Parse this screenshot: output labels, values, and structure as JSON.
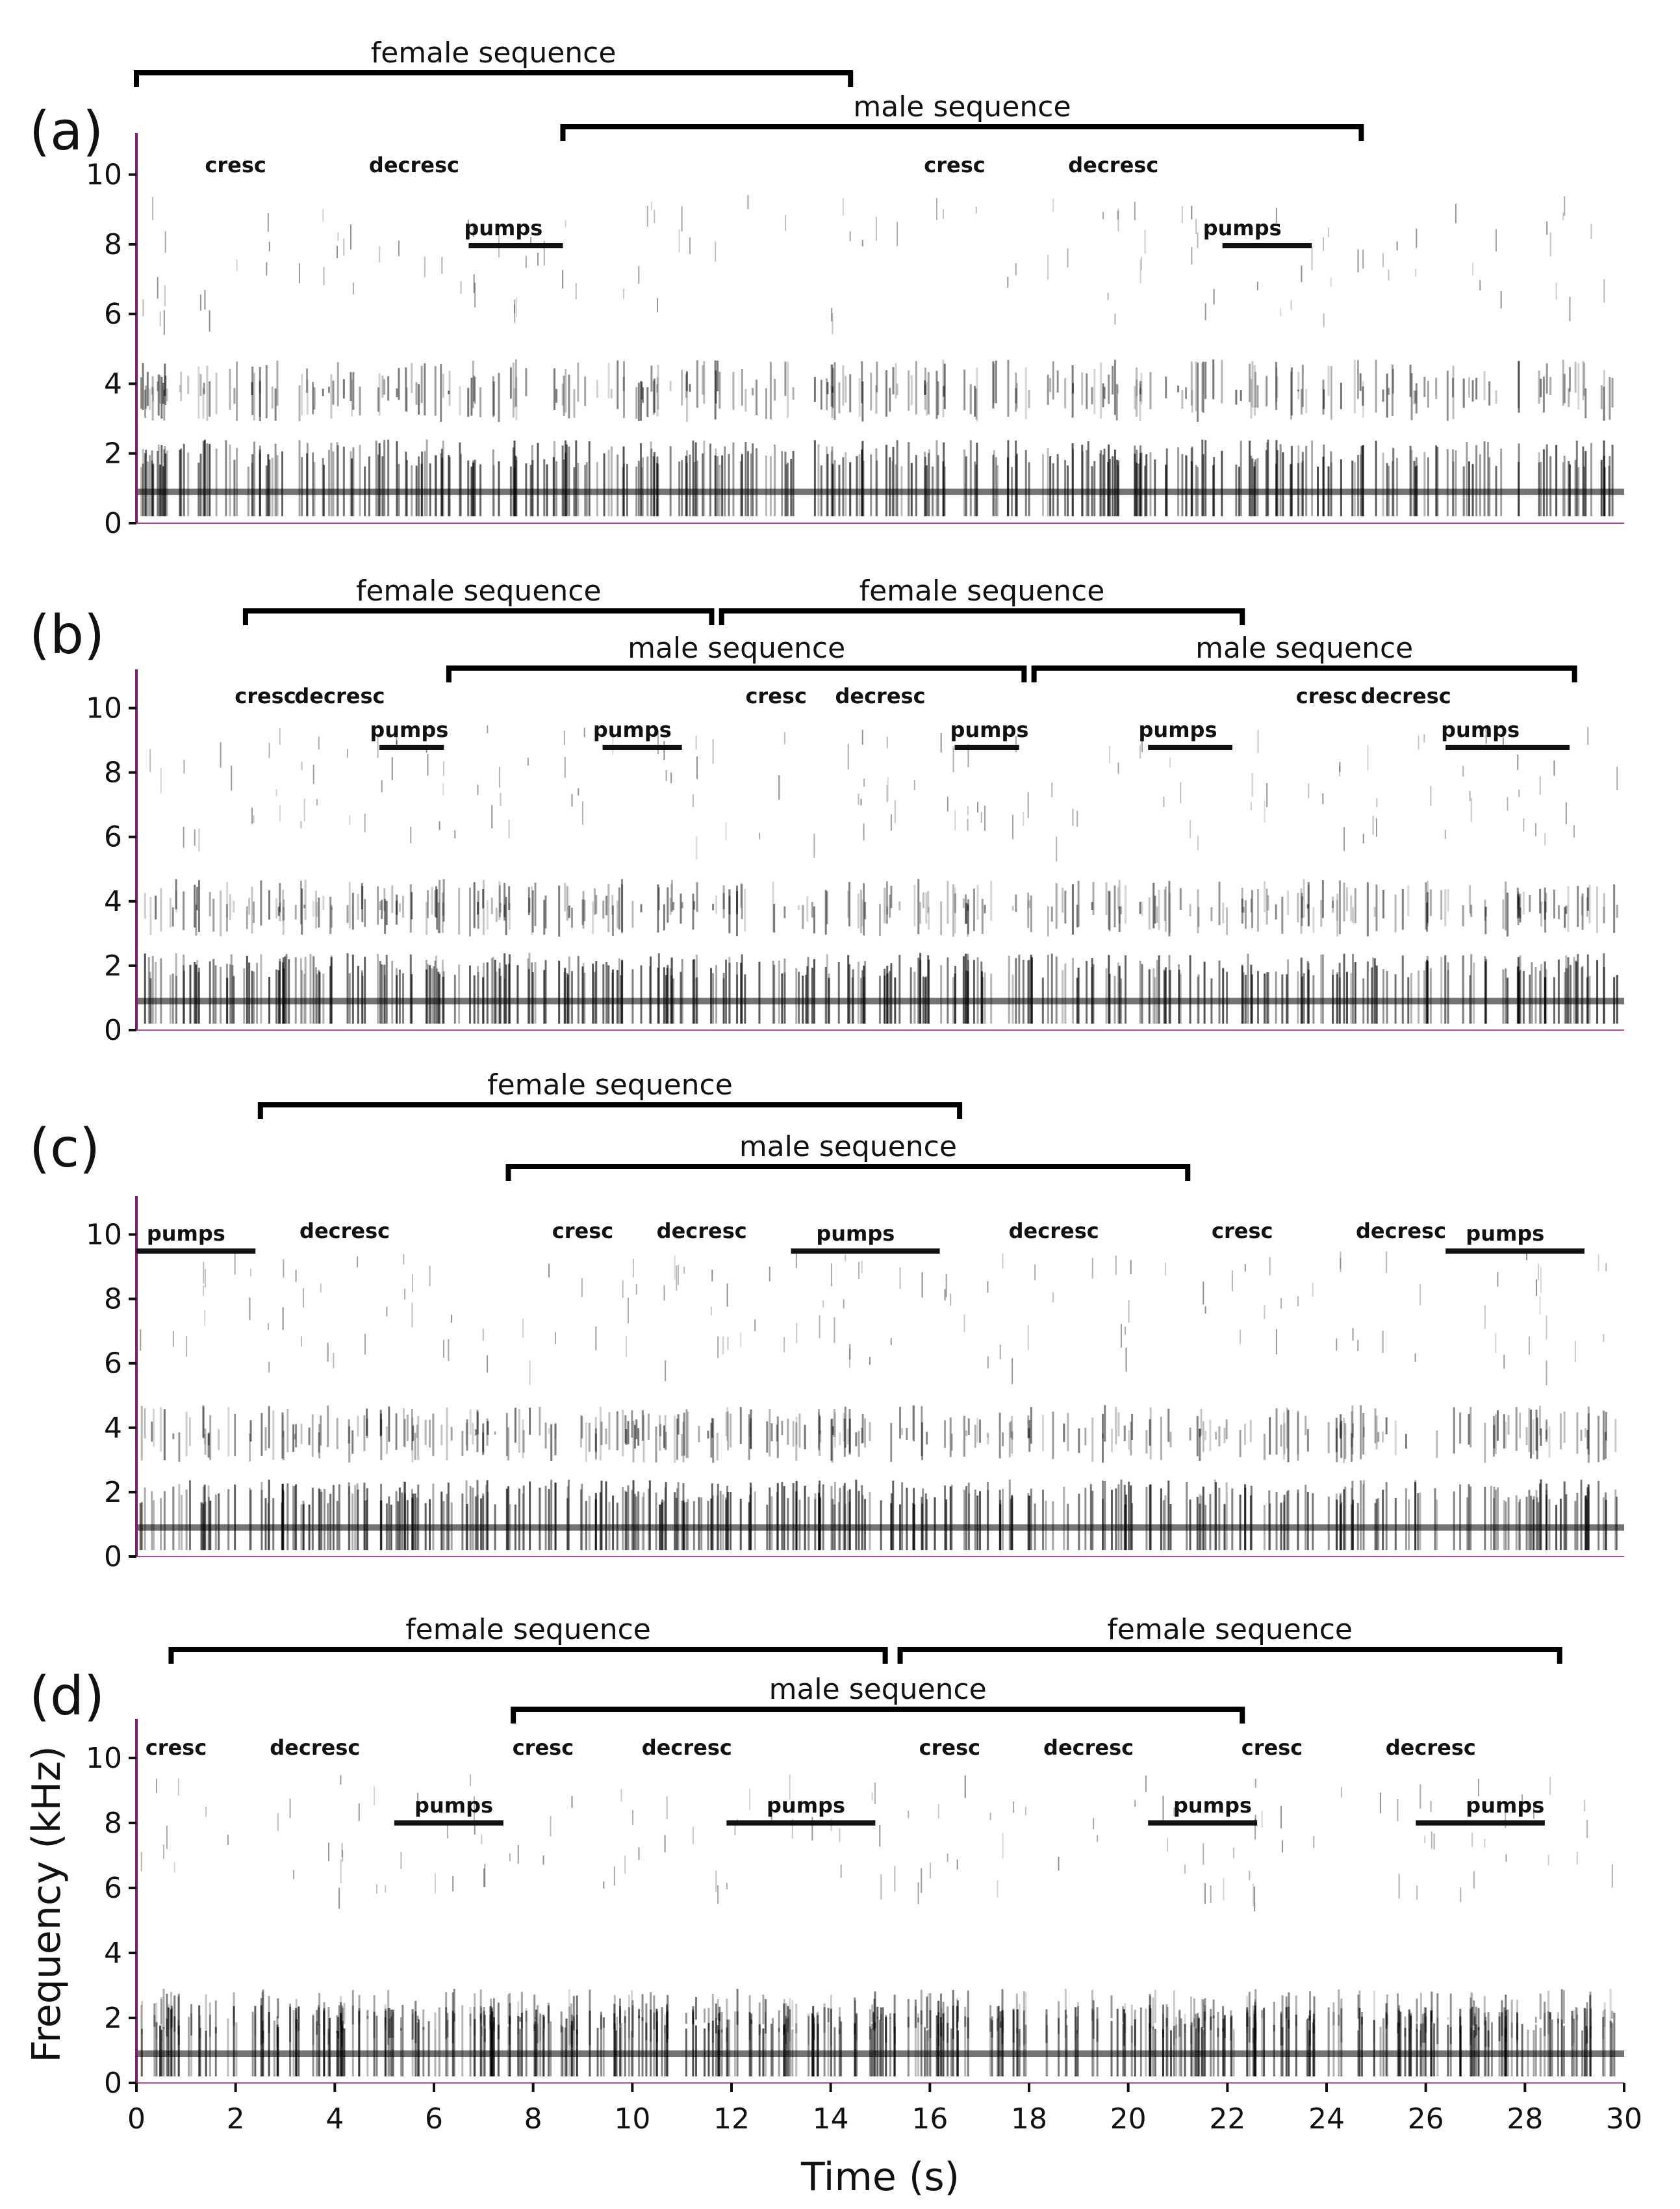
{
  "chart_data": {
    "type": "spectrogram",
    "xlabel": "Time (s)",
    "ylabel": "Frequency (kHz)",
    "xlim": [
      0,
      30
    ],
    "xticks": [
      "0",
      "2",
      "4",
      "6",
      "8",
      "10",
      "12",
      "14",
      "16",
      "18",
      "20",
      "22",
      "24",
      "26",
      "28",
      "30"
    ],
    "panels": [
      {
        "label": "(a)",
        "ylim": [
          0,
          11
        ],
        "yticks": [
          "0",
          "2",
          "4",
          "6",
          "8",
          "10"
        ],
        "sequences": [
          {
            "label": "female sequence",
            "start": 0.0,
            "end": 14.4,
            "row": 0
          },
          {
            "label": "male sequence",
            "start": 8.6,
            "end": 24.7,
            "row": 1
          }
        ],
        "annotations": [
          {
            "text": "cresc",
            "t": 2.0
          },
          {
            "text": "decresc",
            "t": 5.6
          },
          {
            "text": "pumps",
            "t": 7.4,
            "bar": [
              6.7,
              8.6
            ]
          },
          {
            "text": "cresc",
            "t": 16.5
          },
          {
            "text": "decresc",
            "t": 19.7
          },
          {
            "text": "pumps",
            "t": 22.3,
            "bar": [
              21.9,
              23.7
            ]
          }
        ]
      },
      {
        "label": "(b)",
        "ylim": [
          0,
          11
        ],
        "yticks": [
          "0",
          "2",
          "4",
          "6",
          "8",
          "10"
        ],
        "sequences": [
          {
            "label": "female sequence",
            "start": 2.2,
            "end": 11.6,
            "row": 0
          },
          {
            "label": "female sequence",
            "start": 11.8,
            "end": 22.3,
            "row": 0
          },
          {
            "label": "male sequence",
            "start": 6.3,
            "end": 17.9,
            "row": 1
          },
          {
            "label": "male sequence",
            "start": 18.1,
            "end": 29.0,
            "row": 1
          }
        ],
        "annotations": [
          {
            "text": "cresc",
            "t": 2.6
          },
          {
            "text": "decresc",
            "t": 4.1
          },
          {
            "text": "pumps",
            "t": 5.5,
            "bar": [
              4.9,
              6.2
            ]
          },
          {
            "text": "pumps",
            "t": 10.0,
            "bar": [
              9.4,
              11.0
            ]
          },
          {
            "text": "cresc",
            "t": 12.9
          },
          {
            "text": "decresc",
            "t": 15.0
          },
          {
            "text": "pumps",
            "t": 17.2,
            "bar": [
              16.5,
              17.8
            ]
          },
          {
            "text": "pumps",
            "t": 21.0,
            "bar": [
              20.4,
              22.1
            ]
          },
          {
            "text": "cresc",
            "t": 24.0
          },
          {
            "text": "decresc",
            "t": 25.6
          },
          {
            "text": "pumps",
            "t": 27.1,
            "bar": [
              26.4,
              28.9
            ]
          }
        ]
      },
      {
        "label": "(c)",
        "ylim": [
          0,
          11
        ],
        "yticks": [
          "0",
          "2",
          "4",
          "6",
          "8",
          "10"
        ],
        "sequences": [
          {
            "label": "female sequence",
            "start": 2.5,
            "end": 16.6,
            "row": 0
          },
          {
            "label": "male sequence",
            "start": 7.5,
            "end": 21.2,
            "row": 1
          }
        ],
        "annotations": [
          {
            "text": "pumps",
            "t": 1.0,
            "bar": [
              0.0,
              2.4
            ]
          },
          {
            "text": "decresc",
            "t": 4.2
          },
          {
            "text": "cresc",
            "t": 9.0
          },
          {
            "text": "decresc",
            "t": 11.4
          },
          {
            "text": "pumps",
            "t": 14.5,
            "bar": [
              13.2,
              16.2
            ]
          },
          {
            "text": "decresc",
            "t": 18.5
          },
          {
            "text": "cresc",
            "t": 22.3
          },
          {
            "text": "decresc",
            "t": 25.5
          },
          {
            "text": "pumps",
            "t": 27.6,
            "bar": [
              26.4,
              29.2
            ]
          }
        ]
      },
      {
        "label": "(d)",
        "ylim": [
          0,
          11
        ],
        "yticks": [
          "0",
          "2",
          "4",
          "6",
          "8",
          "10"
        ],
        "sequences": [
          {
            "label": "female sequence",
            "start": 0.7,
            "end": 15.1,
            "row": 0
          },
          {
            "label": "female sequence",
            "start": 15.4,
            "end": 28.7,
            "row": 0
          },
          {
            "label": "male sequence",
            "start": 7.6,
            "end": 22.3,
            "row": 1
          }
        ],
        "annotations": [
          {
            "text": "cresc",
            "t": 0.8
          },
          {
            "text": "decresc",
            "t": 3.6
          },
          {
            "text": "pumps",
            "t": 6.4,
            "bar": [
              5.2,
              7.4
            ]
          },
          {
            "text": "cresc",
            "t": 8.2
          },
          {
            "text": "decresc",
            "t": 11.1
          },
          {
            "text": "pumps",
            "t": 13.5,
            "bar": [
              11.9,
              14.9
            ]
          },
          {
            "text": "cresc",
            "t": 16.4
          },
          {
            "text": "decresc",
            "t": 19.2
          },
          {
            "text": "pumps",
            "t": 21.7,
            "bar": [
              20.4,
              22.6
            ]
          },
          {
            "text": "cresc",
            "t": 22.9
          },
          {
            "text": "decresc",
            "t": 26.1
          },
          {
            "text": "pumps",
            "t": 27.6,
            "bar": [
              25.8,
              28.4
            ]
          }
        ]
      }
    ]
  }
}
